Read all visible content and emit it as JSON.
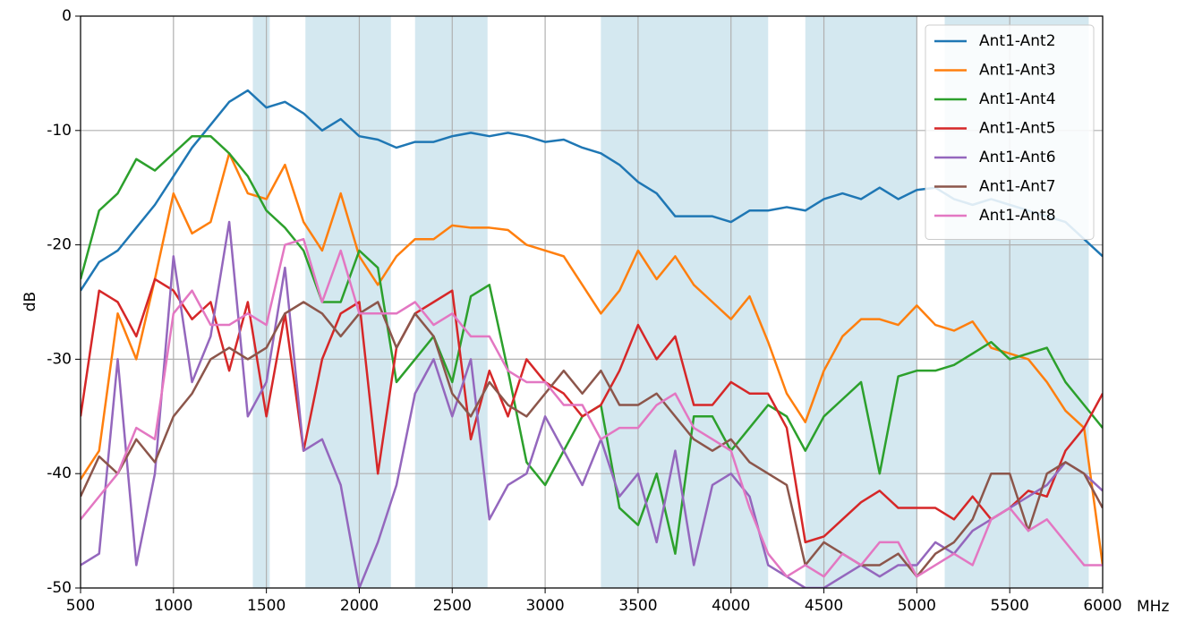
{
  "chart_data": {
    "type": "line",
    "xlabel": "MHz",
    "ylabel": "dB",
    "x": [
      500,
      600,
      700,
      800,
      900,
      1000,
      1100,
      1200,
      1300,
      1400,
      1500,
      1600,
      1700,
      1800,
      1900,
      2000,
      2100,
      2200,
      2300,
      2400,
      2500,
      2600,
      2700,
      2800,
      2900,
      3000,
      3100,
      3200,
      3300,
      3400,
      3500,
      3600,
      3700,
      3800,
      3900,
      4000,
      4100,
      4200,
      4300,
      4400,
      4500,
      4600,
      4700,
      4800,
      4900,
      5000,
      5100,
      5200,
      5300,
      5400,
      5500,
      5600,
      5700,
      5800,
      5900,
      6000
    ],
    "series": [
      {
        "name": "Ant1-Ant2",
        "color": "#1f77b4",
        "values": [
          -24,
          -21.5,
          -20.5,
          -18.5,
          -16.5,
          -14,
          -11.5,
          -9.5,
          -7.5,
          -6.5,
          -8,
          -7.5,
          -8.5,
          -10,
          -9,
          -10.5,
          -10.8,
          -11.5,
          -11,
          -11,
          -10.5,
          -10.2,
          -10.5,
          -10.2,
          -10.5,
          -11,
          -10.8,
          -11.5,
          -12,
          -13,
          -14.5,
          -15.5,
          -17.5,
          -17.5,
          -17.5,
          -18,
          -17,
          -17,
          -16.7,
          -17,
          -16,
          -15.5,
          -16,
          -15,
          -16,
          -15.2,
          -15,
          -16,
          -16.5,
          -16,
          -16.5,
          -17,
          -17.5,
          -18,
          -19.5,
          -21
        ]
      },
      {
        "name": "Ant1-Ant3",
        "color": "#ff7f0e",
        "values": [
          -40.5,
          -38,
          -26,
          -30,
          -23,
          -15.5,
          -19,
          -18,
          -12,
          -15.5,
          -16,
          -13,
          -18,
          -20.5,
          -15.5,
          -21,
          -23.5,
          -21,
          -19.5,
          -19.5,
          -18.3,
          -18.5,
          -18.5,
          -18.7,
          -20,
          -20.5,
          -21,
          -23.5,
          -26,
          -24,
          -20.5,
          -23,
          -21,
          -23.5,
          -25,
          -26.5,
          -24.5,
          -28.5,
          -33,
          -35.5,
          -31,
          -28,
          -26.5,
          -26.5,
          -27,
          -25.3,
          -27,
          -27.5,
          -26.7,
          -29,
          -29.5,
          -30,
          -32,
          -34.5,
          -36,
          -48
        ]
      },
      {
        "name": "Ant1-Ant4",
        "color": "#2ca02c",
        "values": [
          -23,
          -17,
          -15.5,
          -12.5,
          -13.5,
          -12,
          -10.5,
          -10.5,
          -12,
          -14,
          -17,
          -18.5,
          -20.5,
          -25,
          -25,
          -20.5,
          -22,
          -32,
          -30,
          -28,
          -32,
          -24.5,
          -23.5,
          -31,
          -39,
          -41,
          -38,
          -35,
          -34,
          -43,
          -44.5,
          -40,
          -47,
          -35,
          -35,
          -38,
          -36,
          -34,
          -35,
          -38,
          -35,
          -33.5,
          -32,
          -40,
          -31.5,
          -31,
          -31,
          -30.5,
          -29.5,
          -28.5,
          -30,
          -29.5,
          -29,
          -32,
          -34,
          -36
        ]
      },
      {
        "name": "Ant1-Ant5",
        "color": "#d62728",
        "values": [
          -35,
          -24,
          -25,
          -28,
          -23,
          -24,
          -26.5,
          -25,
          -31,
          -25,
          -35,
          -26,
          -38,
          -30,
          -26,
          -25,
          -40,
          -29,
          -26,
          -25,
          -24,
          -37,
          -31,
          -35,
          -30,
          -32,
          -33,
          -35,
          -34,
          -31,
          -27,
          -30,
          -28,
          -34,
          -34,
          -32,
          -33,
          -33,
          -36,
          -46,
          -45.5,
          -44,
          -42.5,
          -41.5,
          -43,
          -43,
          -43,
          -44,
          -42,
          -44,
          -43,
          -41.5,
          -42,
          -38,
          -36,
          -33
        ]
      },
      {
        "name": "Ant1-Ant6",
        "color": "#9467bd",
        "values": [
          -48,
          -47,
          -30,
          -48,
          -40,
          -21,
          -32,
          -28,
          -18,
          -35,
          -32,
          -22,
          -38,
          -37,
          -41,
          -50,
          -46,
          -41,
          -33,
          -30,
          -35,
          -30,
          -44,
          -41,
          -40,
          -35,
          -38,
          -41,
          -37,
          -42,
          -40,
          -46,
          -38,
          -48,
          -41,
          -40,
          -42,
          -48,
          -49,
          -50,
          -50,
          -49,
          -48,
          -49,
          -48,
          -48,
          -46,
          -47,
          -45,
          -44,
          -43,
          -42,
          -41,
          -39,
          -40,
          -41.5
        ]
      },
      {
        "name": "Ant1-Ant7",
        "color": "#8c564b",
        "values": [
          -42,
          -38.5,
          -40,
          -37,
          -39,
          -35,
          -33,
          -30,
          -29,
          -30,
          -29,
          -26,
          -25,
          -26,
          -28,
          -26,
          -25,
          -29,
          -26,
          -28,
          -33,
          -35,
          -32,
          -34,
          -35,
          -33,
          -31,
          -33,
          -31,
          -34,
          -34,
          -33,
          -35,
          -37,
          -38,
          -37,
          -39,
          -40,
          -41,
          -48,
          -46,
          -47,
          -48,
          -48,
          -47,
          -49,
          -47,
          -46,
          -44,
          -40,
          -40,
          -45,
          -40,
          -39,
          -40,
          -43
        ]
      },
      {
        "name": "Ant1-Ant8",
        "color": "#e377c2",
        "values": [
          -44,
          -42,
          -40,
          -36,
          -37,
          -26,
          -24,
          -27,
          -27,
          -26,
          -27,
          -20,
          -19.5,
          -25,
          -20.5,
          -26,
          -26,
          -26,
          -25,
          -27,
          -26,
          -28,
          -28,
          -31,
          -32,
          -32,
          -34,
          -34,
          -37,
          -36,
          -36,
          -34,
          -33,
          -36,
          -37,
          -38,
          -43,
          -47,
          -49,
          -48,
          -49,
          -47,
          -48,
          -46,
          -46,
          -49,
          -48,
          -47,
          -48,
          -44,
          -43,
          -45,
          -44,
          -46,
          -48,
          -48
        ]
      }
    ],
    "shaded_regions": [
      [
        1427,
        1518
      ],
      [
        1710,
        2170
      ],
      [
        2300,
        2690
      ],
      [
        3300,
        4200
      ],
      [
        4400,
        5000
      ],
      [
        5150,
        5925
      ]
    ],
    "shaded_color": "#d4e8f0",
    "xlim": [
      500,
      6000
    ],
    "xticks": [
      500,
      1000,
      1500,
      2000,
      2500,
      3000,
      3500,
      4000,
      4500,
      5000,
      5500,
      6000
    ],
    "ylim": [
      -50,
      0
    ],
    "yticks": [
      -50,
      -40,
      -30,
      -20,
      -10,
      0
    ],
    "grid": true,
    "legend": "upper right"
  }
}
